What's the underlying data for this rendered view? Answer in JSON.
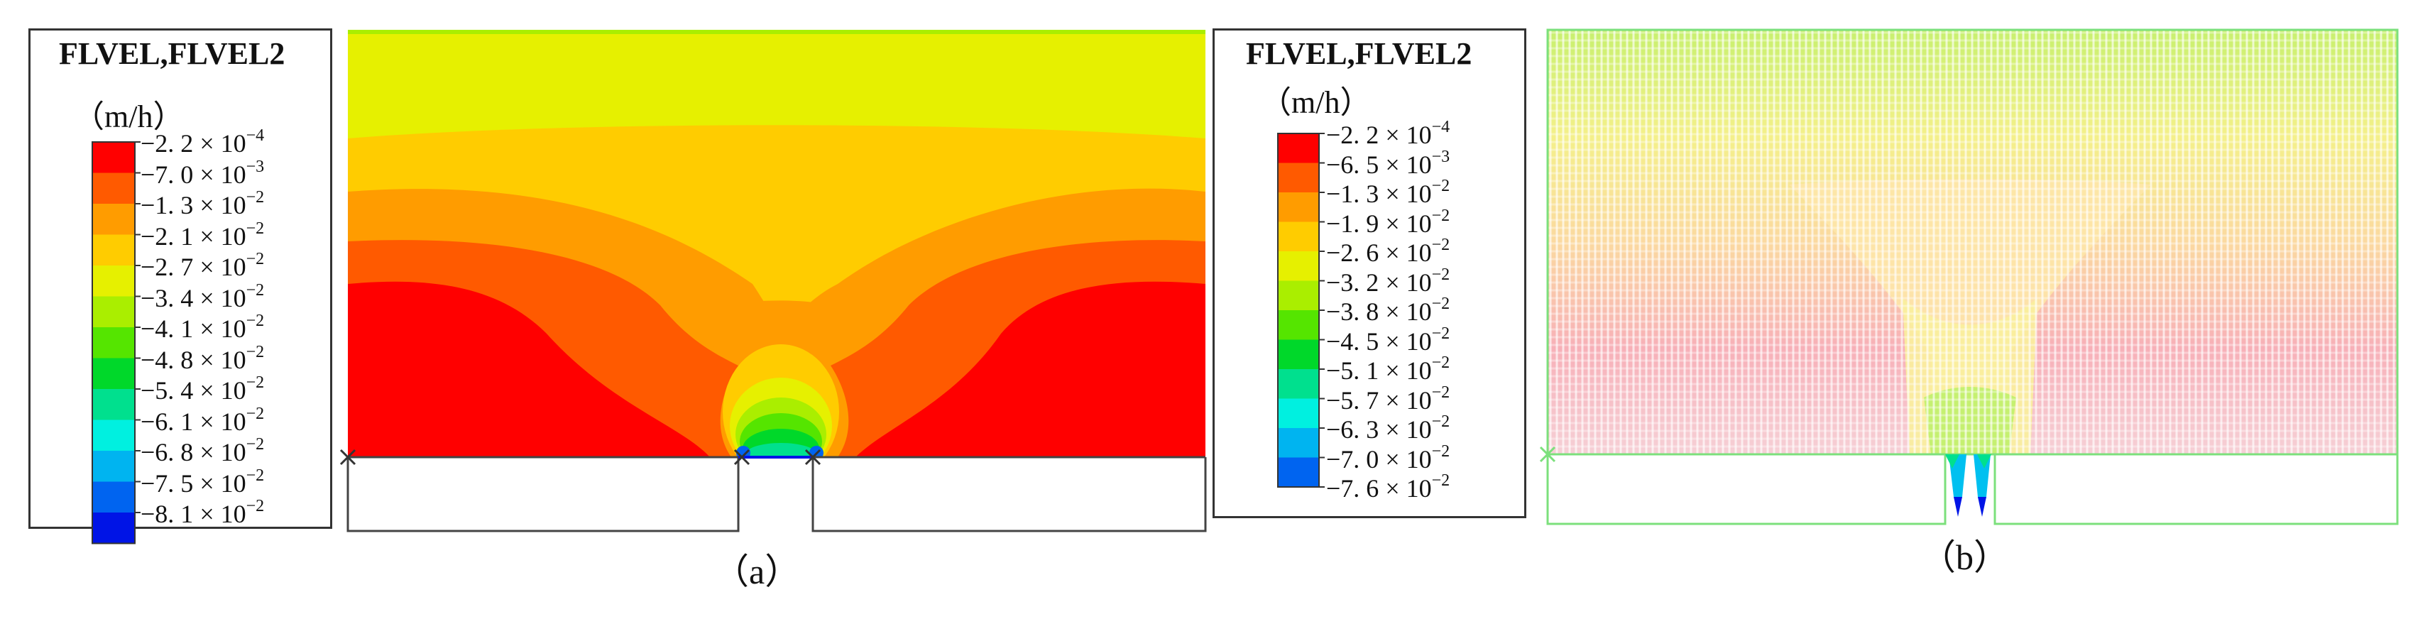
{
  "panels": [
    {
      "id": "a",
      "legend_title": "FLVEL,FLVEL2",
      "unit": "（m/h）",
      "caption": "（a）",
      "colors": [
        "#ff0000",
        "#ff5a00",
        "#ff9c00",
        "#ffcc00",
        "#e6f000",
        "#aaee00",
        "#55e500",
        "#00d82a",
        "#00e08e",
        "#00f0e0",
        "#00b4f0",
        "#0064f0",
        "#0014e6"
      ],
      "ticks": [
        {
          "mantissa": "−2. 2",
          "exp": "−4"
        },
        {
          "mantissa": "−7. 0",
          "exp": "−3"
        },
        {
          "mantissa": "−1. 3",
          "exp": "−2"
        },
        {
          "mantissa": "−2. 1",
          "exp": "−2"
        },
        {
          "mantissa": "−2. 7",
          "exp": "−2"
        },
        {
          "mantissa": "−3. 4",
          "exp": "−2"
        },
        {
          "mantissa": "−4. 1",
          "exp": "−2"
        },
        {
          "mantissa": "−4. 8",
          "exp": "−2"
        },
        {
          "mantissa": "−5. 4",
          "exp": "−2"
        },
        {
          "mantissa": "−6. 1",
          "exp": "−2"
        },
        {
          "mantissa": "−6. 8",
          "exp": "−2"
        },
        {
          "mantissa": "−7. 5",
          "exp": "−2"
        },
        {
          "mantissa": "−8. 1",
          "exp": "−2"
        }
      ]
    },
    {
      "id": "b",
      "legend_title": "FLVEL,FLVEL2",
      "unit": "（m/h）",
      "caption": "（b）",
      "colors": [
        "#ff0000",
        "#ff5a00",
        "#ff9c00",
        "#ffcc00",
        "#e6f000",
        "#aaee00",
        "#55e500",
        "#00d82a",
        "#00e08e",
        "#00f0e0",
        "#00b4f0",
        "#0064f0"
      ],
      "ticks": [
        {
          "mantissa": "−2. 2",
          "exp": "−4"
        },
        {
          "mantissa": "−6. 5",
          "exp": "−3"
        },
        {
          "mantissa": "−1. 3",
          "exp": "−2"
        },
        {
          "mantissa": "−1. 9",
          "exp": "−2"
        },
        {
          "mantissa": "−2. 6",
          "exp": "−2"
        },
        {
          "mantissa": "−3. 2",
          "exp": "−2"
        },
        {
          "mantissa": "−3. 8",
          "exp": "−2"
        },
        {
          "mantissa": "−4. 5",
          "exp": "−2"
        },
        {
          "mantissa": "−5. 1",
          "exp": "−2"
        },
        {
          "mantissa": "−5. 7",
          "exp": "−2"
        },
        {
          "mantissa": "−6. 3",
          "exp": "−2"
        },
        {
          "mantissa": "−7. 0",
          "exp": "−2"
        },
        {
          "mantissa": "−7. 6",
          "exp": "−2"
        }
      ]
    }
  ],
  "times_sign": "× 10"
}
